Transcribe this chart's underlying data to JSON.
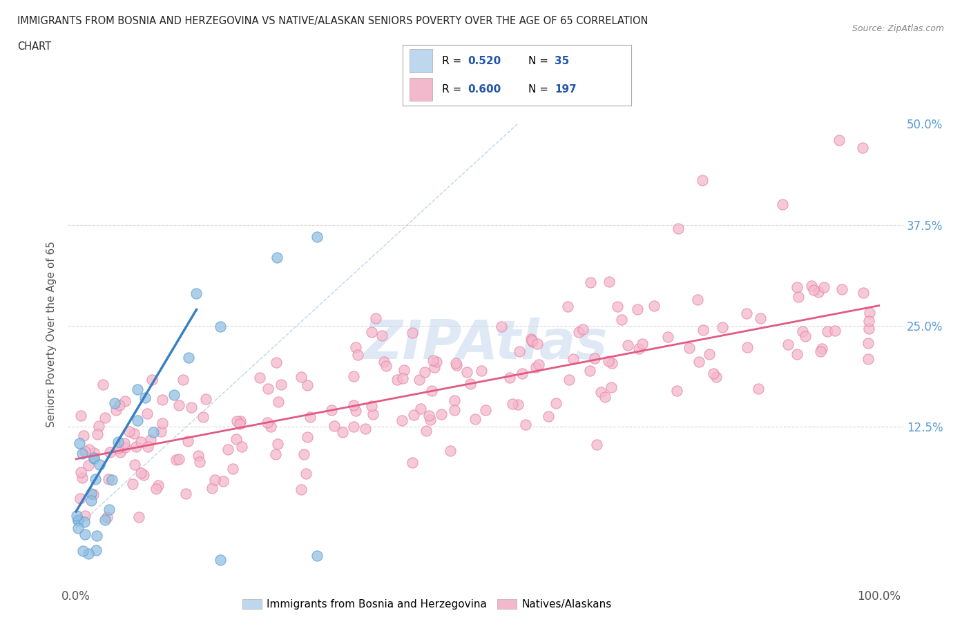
{
  "title_line1": "IMMIGRANTS FROM BOSNIA AND HERZEGOVINA VS NATIVE/ALASKAN SENIORS POVERTY OVER THE AGE OF 65 CORRELATION",
  "title_line2": "CHART",
  "source_text": "Source: ZipAtlas.com",
  "ylabel": "Seniors Poverty Over the Age of 65",
  "legend_r1": "R = 0.520",
  "legend_n1": "N =  35",
  "legend_r2": "R = 0.600",
  "legend_n2": "N = 197",
  "legend_label1": "Immigrants from Bosnia and Herzegovina",
  "legend_label2": "Natives/Alaskans",
  "blue_color": "#92c0e0",
  "blue_edge": "#5b9bd5",
  "pink_color": "#f4b8cc",
  "pink_edge": "#e87fa3",
  "blue_trend_color": "#3a7fc1",
  "pink_trend_color": "#e05a82",
  "ref_line_color": "#b8cfe8",
  "watermark_color": "#c5d8ee",
  "grid_color": "#d8d8d8",
  "ytick_color": "#5b9bd5",
  "background_color": "#ffffff",
  "title_color": "#222222",
  "axis_label_color": "#555555",
  "legend_text_color": "#000000",
  "legend_value_color": "#2255aa"
}
